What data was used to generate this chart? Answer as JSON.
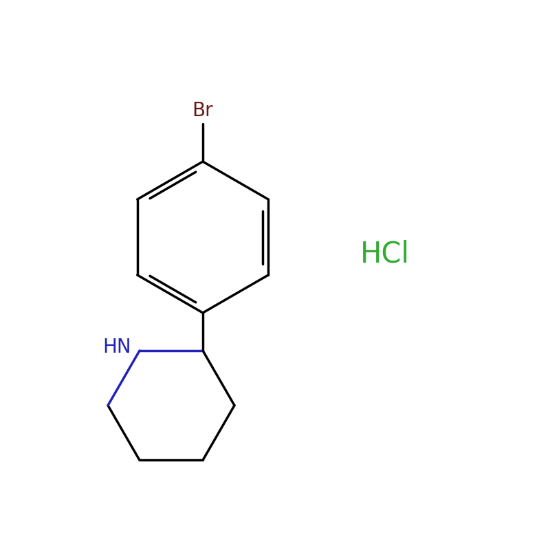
{
  "background_color": "#ffffff",
  "bond_color": "#000000",
  "nh_bond_color": "#2222bb",
  "br_label_color": "#6b1a1a",
  "hcl_color": "#33aa33",
  "nh_label_color": "#2222bb",
  "line_width": 2.5,
  "hcl_text": "HCl",
  "br_text": "Br",
  "nh_text": "HN"
}
